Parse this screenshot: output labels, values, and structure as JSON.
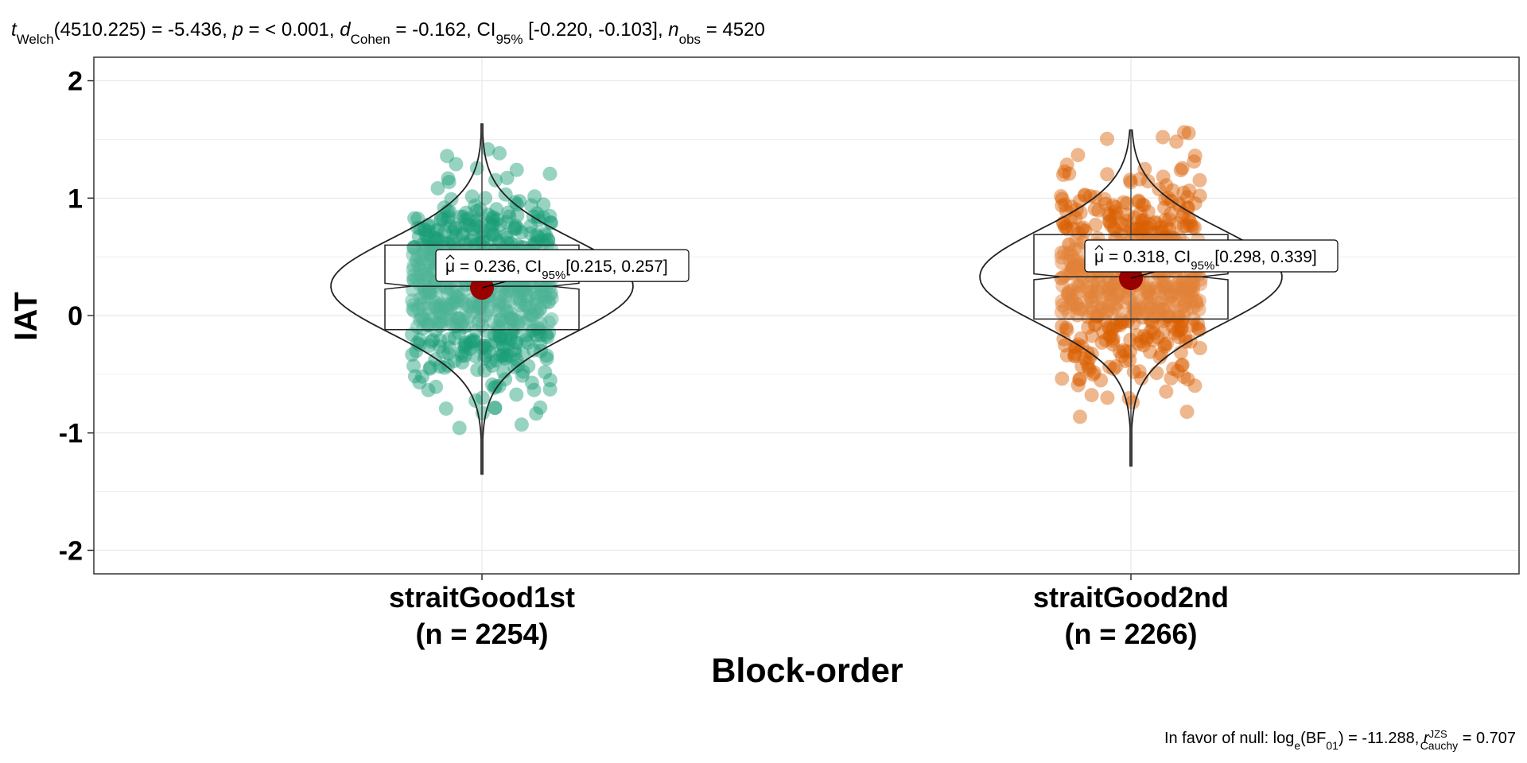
{
  "chart_data": {
    "type": "scatter",
    "subtype": "violin-box-jitter",
    "title": "",
    "subtitle": {
      "t_symbol": "t",
      "t_subscript": "Welch",
      "df": "(4510.225)",
      "t_value": " = -5.436, ",
      "p_symbol": "p",
      "p_value": " = < 0.001, ",
      "d_symbol": "d",
      "d_subscript": "Cohen",
      "d_value": " = -0.162, ",
      "ci_symbol": "CI",
      "ci_subscript": "95%",
      "ci_value": " [-0.220, -0.103], ",
      "n_symbol": "n",
      "n_subscript": "obs",
      "n_value": " = 4520"
    },
    "caption": {
      "prefix": "In favor of null: log",
      "log_subscript": "e",
      "bf_open": "(BF",
      "bf_subscript": "01",
      "bf_value": ") = -11.288, ",
      "r_symbol": "r",
      "r_superscript": "JZS",
      "r_subscript": "Cauchy",
      "r_value": " = 0.707"
    },
    "xlabel": "Block-order",
    "ylabel": "IAT",
    "ylim": [
      -2.2,
      2.2
    ],
    "yticks": [
      -2,
      -1,
      0,
      1,
      2
    ],
    "grid": true,
    "groups": [
      {
        "name": "straitGood1st",
        "n_label": "(n = 2254)",
        "n": 2254,
        "color": "#1b9e77",
        "mean": 0.236,
        "mean_label_mu": "μ",
        "mean_label_eq": " = 0.236, ",
        "mean_label_ci": "CI",
        "mean_label_ci_sub": "95%",
        "mean_label_ci_val": "[0.215, 0.257]",
        "ci": [
          0.215,
          0.257
        ],
        "box": {
          "q1": -0.12,
          "median": 0.25,
          "q3": 0.6,
          "notch_low": 0.225,
          "notch_high": 0.275
        },
        "min": -1.35,
        "max": 1.63
      },
      {
        "name": "straitGood2nd",
        "n_label": "(n = 2266)",
        "n": 2266,
        "color": "#d95f02",
        "mean": 0.318,
        "mean_label_mu": "μ",
        "mean_label_eq": " = 0.318, ",
        "mean_label_ci": "CI",
        "mean_label_ci_sub": "95%",
        "mean_label_ci_val": "[0.298, 0.339]",
        "ci": [
          0.298,
          0.339
        ],
        "box": {
          "q1": -0.03,
          "median": 0.33,
          "q3": 0.69,
          "notch_low": 0.305,
          "notch_high": 0.355
        },
        "min": -1.28,
        "max": 1.58
      }
    ],
    "colors": {
      "mean_point": "#990000",
      "grid": "#ebebeb",
      "axis": "#333333"
    }
  }
}
